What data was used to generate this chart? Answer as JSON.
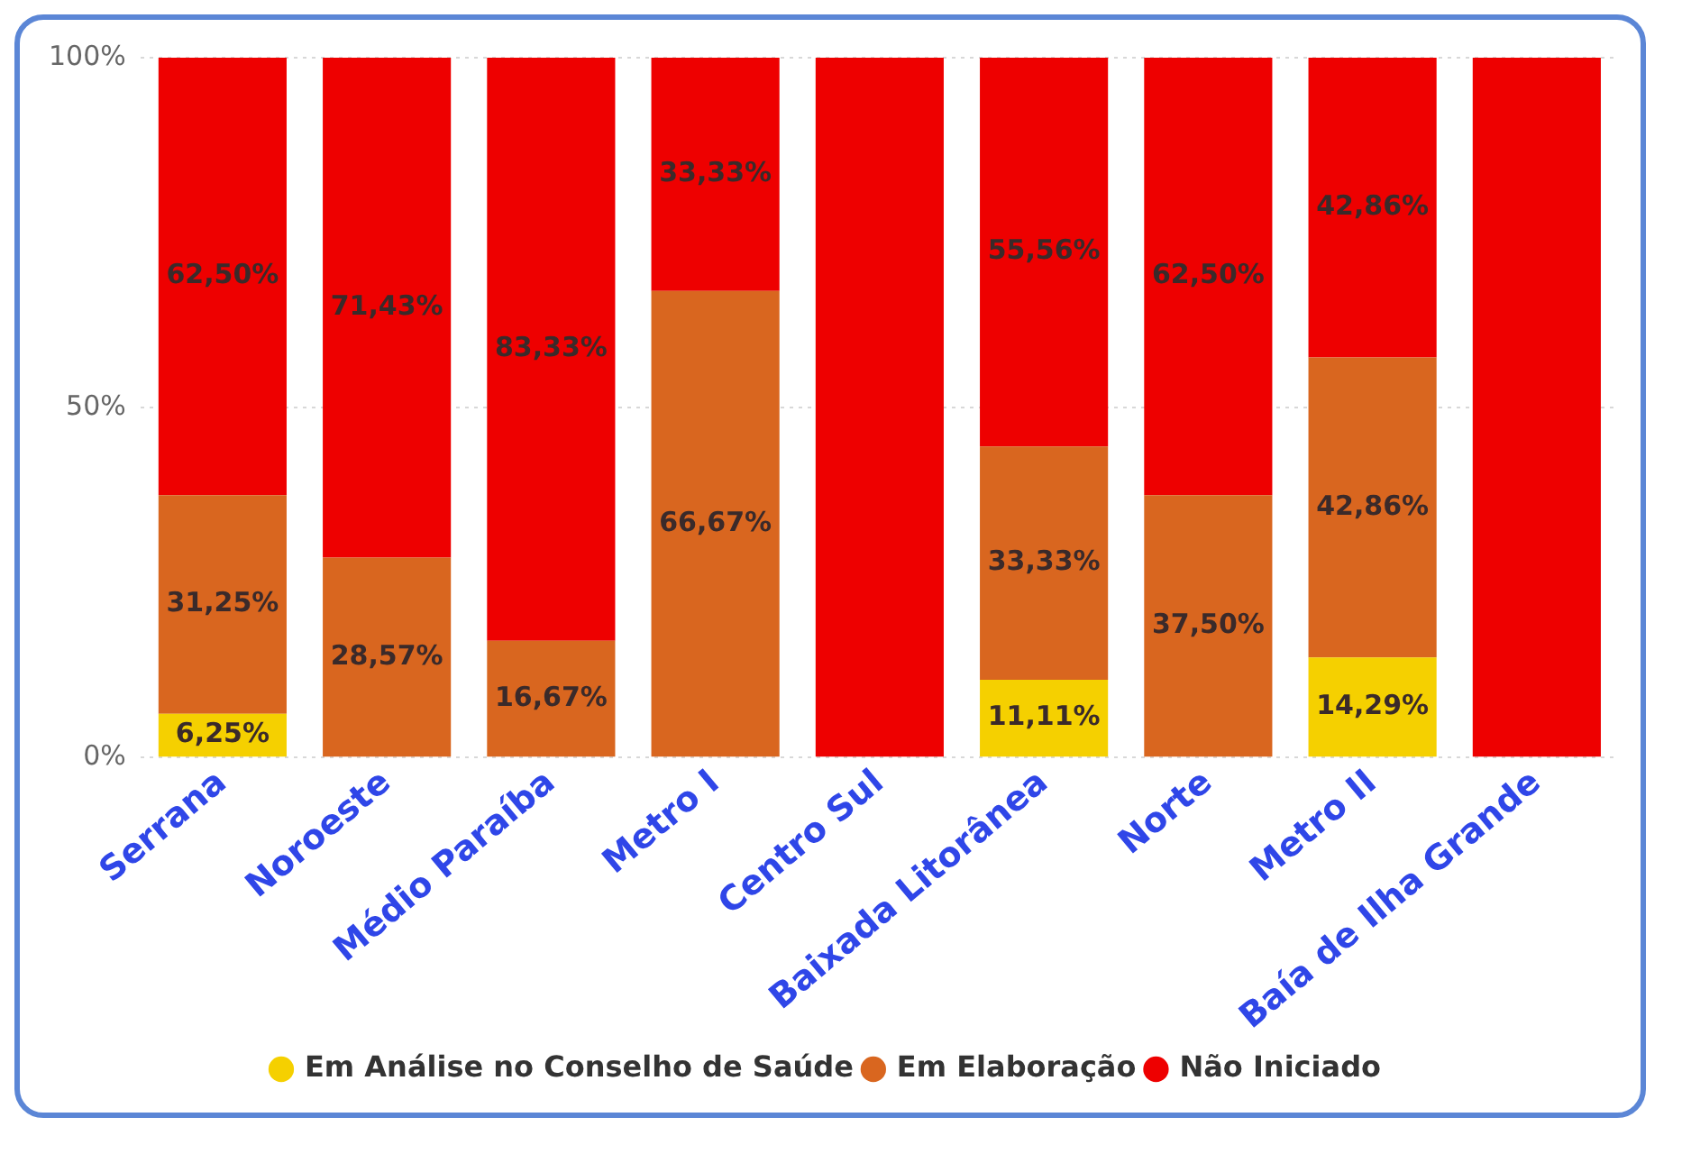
{
  "chart_data": {
    "type": "bar",
    "stacked": true,
    "categories": [
      "Serrana",
      "Noroeste",
      "Médio Paraíba",
      "Metro I",
      "Centro Sul",
      "Baixada Litorânea",
      "Norte",
      "Metro II",
      "Baía de Ilha Grande"
    ],
    "series": [
      {
        "name": "Em Análise no Conselho de Saúde",
        "color": "#f5d000",
        "values": [
          6.25,
          0,
          0,
          0,
          0,
          11.11,
          0,
          14.29,
          0
        ],
        "value_labels": [
          "6,25%",
          null,
          null,
          null,
          null,
          "11,11%",
          null,
          "14,29%",
          null
        ]
      },
      {
        "name": "Em Elaboração",
        "color": "#d9661f",
        "values": [
          31.25,
          28.57,
          16.67,
          66.67,
          0,
          33.33,
          37.5,
          42.86,
          0
        ],
        "value_labels": [
          "31,25%",
          "28,57%",
          "16,67%",
          "66,67%",
          null,
          "33,33%",
          "37,50%",
          "42,86%",
          null
        ]
      },
      {
        "name": "Não Iniciado",
        "color": "#ee0000",
        "values": [
          62.5,
          71.43,
          83.33,
          33.33,
          100,
          55.56,
          62.5,
          42.86,
          100
        ],
        "value_labels": [
          "62,50%",
          "71,43%",
          "83,33%",
          "33,33%",
          null,
          "55,56%",
          "62,50%",
          "42,86%",
          null
        ]
      }
    ],
    "ylim": [
      0,
      100
    ],
    "yticks": [
      {
        "value": 0,
        "label": "0%"
      },
      {
        "value": 50,
        "label": "50%"
      },
      {
        "value": 100,
        "label": "100%"
      }
    ],
    "grid": "y",
    "legend": "bottom"
  }
}
